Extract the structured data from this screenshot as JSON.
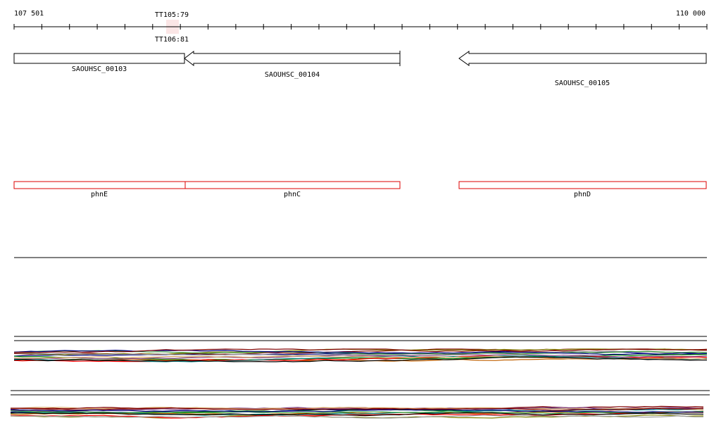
{
  "ruler": {
    "start": "107 501",
    "end": "110 000",
    "markers": [
      "TT105:79",
      "TT106:81"
    ]
  },
  "genes": [
    {
      "label": "SAOUHSC_00103"
    },
    {
      "label": "SAOUHSC_00104"
    },
    {
      "label": "SAOUHSC_00105"
    }
  ],
  "features": [
    {
      "label": "phnE"
    },
    {
      "label": "phnC"
    },
    {
      "label": "phnD"
    }
  ]
}
